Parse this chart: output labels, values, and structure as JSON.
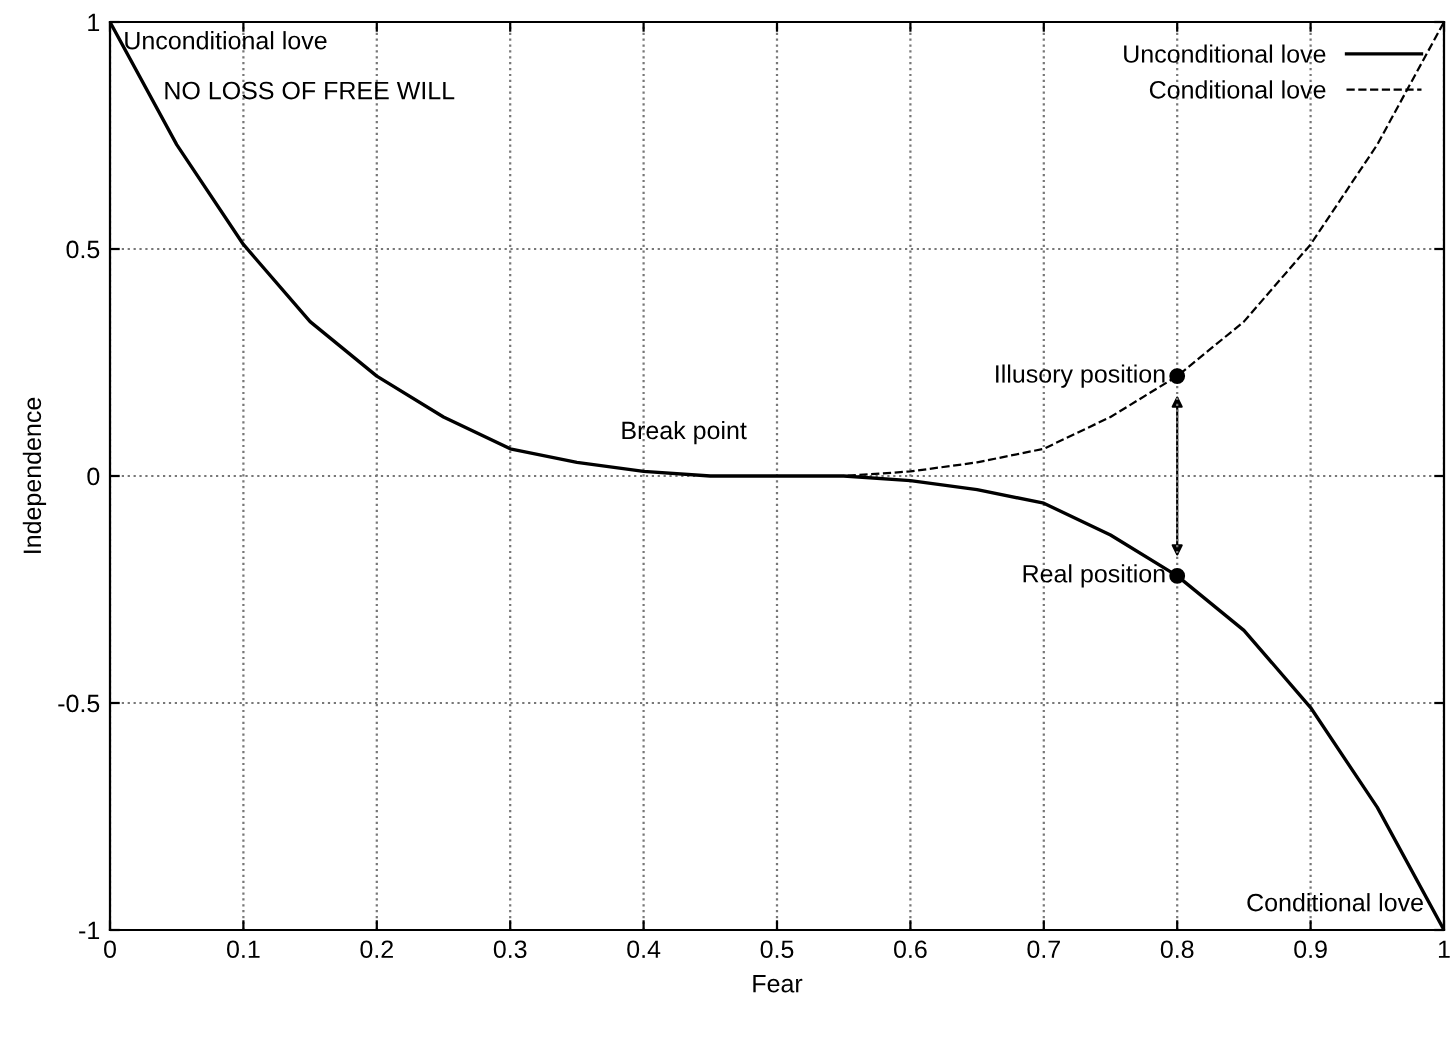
{
  "chart_data": {
    "type": "line",
    "xlabel": "Fear",
    "ylabel": "Independence",
    "series": [
      {
        "name": "Unconditional love",
        "color": "#000000",
        "line_style": "solid",
        "x": [
          0,
          0.05,
          0.1,
          0.15,
          0.2,
          0.25,
          0.3,
          0.35,
          0.4,
          0.45,
          0.5,
          0.55,
          0.6,
          0.65,
          0.7,
          0.75,
          0.8,
          0.85,
          0.9,
          0.95,
          1
        ],
        "values": [
          1,
          0.73,
          0.51,
          0.34,
          0.22,
          0.13,
          0.06,
          0.03,
          0.01,
          0,
          0,
          0,
          -0.01,
          -0.03,
          -0.06,
          -0.13,
          -0.22,
          -0.34,
          -0.51,
          -0.73,
          -1
        ]
      },
      {
        "name": "Conditional love",
        "color": "#000000",
        "line_style": "dashed",
        "x": [
          0.5,
          0.55,
          0.6,
          0.65,
          0.7,
          0.75,
          0.8,
          0.85,
          0.9,
          0.95,
          1
        ],
        "values": [
          0,
          0,
          0.01,
          0.03,
          0.06,
          0.13,
          0.22,
          0.34,
          0.51,
          0.73,
          1
        ]
      },
      {
        "type": "scatter",
        "color": "#000000",
        "marker": "circle",
        "x": [
          0.8,
          0.8
        ],
        "values": [
          0.22,
          -0.22
        ]
      }
    ],
    "annotations": [
      "Unconditional love",
      "NO LOSS OF FREE WILL",
      "Break point",
      "Conditional love",
      {
        "text": "Illusory position",
        "x": 0.8,
        "y": 0.22
      },
      {
        "text": "Real position",
        "x": 0.8,
        "y": -0.22
      }
    ],
    "xlim": [
      0,
      1
    ],
    "ylim": [
      -1,
      1
    ],
    "xticks": [
      0,
      0.1,
      0.2,
      0.3,
      0.4,
      0.5,
      0.6,
      0.7,
      0.8,
      0.9,
      1
    ],
    "yticks": [
      -1,
      -0.5,
      0,
      0.5,
      1
    ],
    "grid": true,
    "legend": "top right"
  }
}
